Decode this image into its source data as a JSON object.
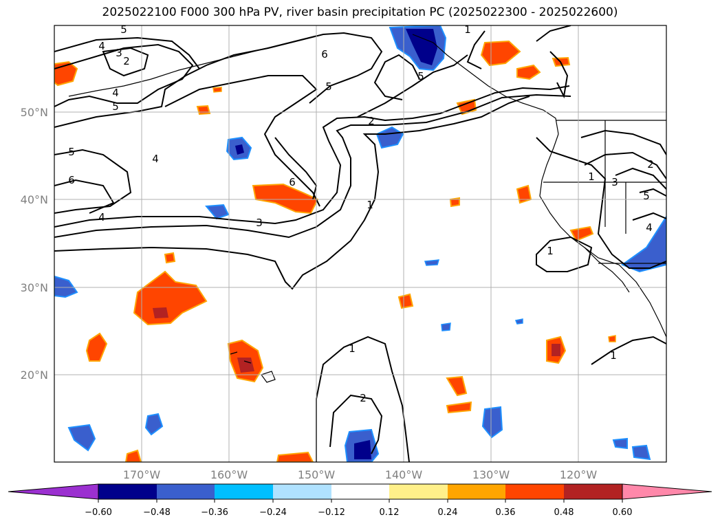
{
  "title": "2025022100 F000 300 hPa PV, river basin precipitation PC (2025022300 - 2025022600)",
  "map": {
    "lat_labels": [
      "50°N",
      "40°N",
      "30°N",
      "20°N"
    ],
    "lon_labels": [
      "170°W",
      "160°W",
      "150°W",
      "140°W",
      "130°W",
      "120°W"
    ],
    "contour_labels": [
      {
        "id": "c5a",
        "text": "5"
      },
      {
        "id": "c4a",
        "text": "4"
      },
      {
        "id": "c3a",
        "text": "3"
      },
      {
        "id": "c2a",
        "text": "2"
      },
      {
        "id": "c4b",
        "text": "4"
      },
      {
        "id": "c5b",
        "text": "5"
      },
      {
        "id": "c5c",
        "text": "5"
      },
      {
        "id": "c6a",
        "text": "6"
      },
      {
        "id": "c4c",
        "text": "4"
      },
      {
        "id": "c4d",
        "text": "4"
      },
      {
        "id": "c6b",
        "text": "6"
      },
      {
        "id": "c3b",
        "text": "3"
      },
      {
        "id": "c6c",
        "text": "6"
      },
      {
        "id": "c5d",
        "text": "5"
      },
      {
        "id": "c5e",
        "text": "5"
      },
      {
        "id": "c2b",
        "text": "2"
      },
      {
        "id": "c1a",
        "text": "1"
      },
      {
        "id": "c1b",
        "text": "1"
      },
      {
        "id": "c2c",
        "text": "2"
      },
      {
        "id": "c1c",
        "text": "1"
      },
      {
        "id": "c3c",
        "text": "3"
      },
      {
        "id": "c5f",
        "text": "5"
      },
      {
        "id": "c4e",
        "text": "4"
      },
      {
        "id": "c1d",
        "text": "1"
      },
      {
        "id": "c1e",
        "text": "1"
      },
      {
        "id": "c2d",
        "text": "2"
      },
      {
        "id": "c1f",
        "text": "1"
      }
    ]
  },
  "colorbar": {
    "ticks": [
      "−0.60",
      "−0.48",
      "−0.36",
      "−0.24",
      "−0.12",
      "0.12",
      "0.24",
      "0.36",
      "0.48",
      "0.60"
    ],
    "colors": {
      "under": "#9b30d0",
      "b1": "#00008b",
      "b2": "#3a5fcd",
      "b3": "#00bfff",
      "b4": "#b0e2ff",
      "mid": "#ffffff",
      "r1": "#fff08a",
      "r2": "#ffa500",
      "r3": "#ff4500",
      "r4": "#b22222",
      "over": "#ff88aa"
    }
  },
  "fill_colors": {
    "dark_blue": "#00008b",
    "blue": "#3a5fcd",
    "sky": "#1e90ff",
    "light": "#b0e2ff",
    "orange_red": "#ff4500",
    "orange": "#ffa500",
    "yellow": "#fff08a",
    "brick": "#b22222"
  }
}
